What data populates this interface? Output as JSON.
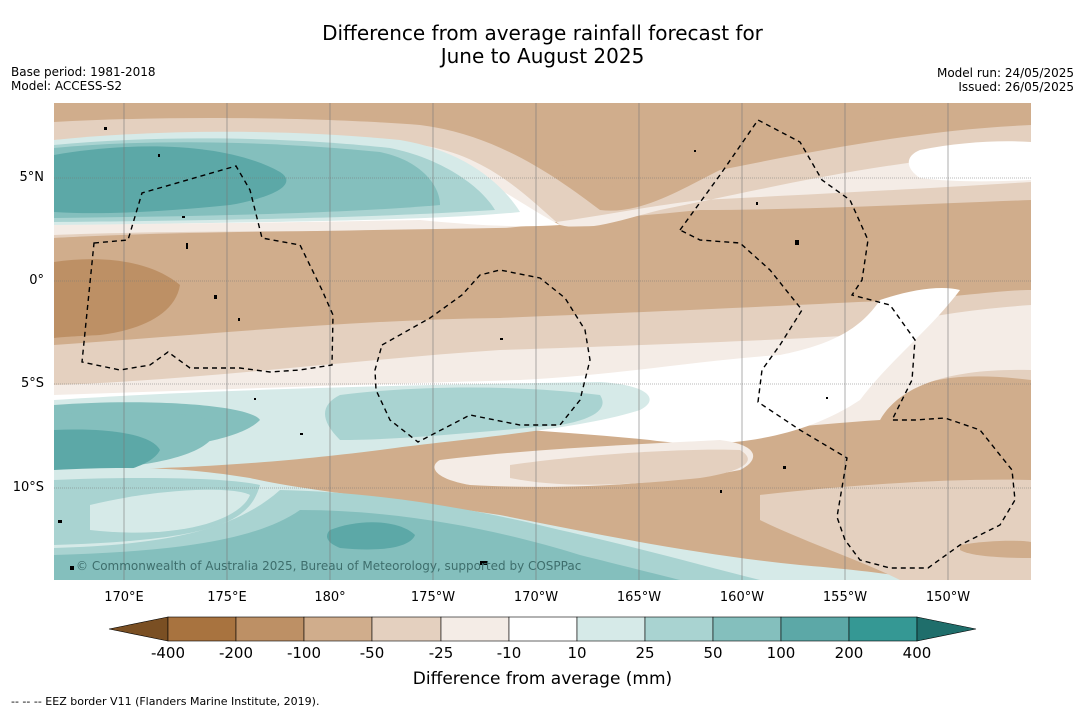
{
  "title_line1": "Difference from average rainfall forecast for",
  "title_line2": "June to August 2025",
  "meta": {
    "base_period": "Base period: 1981-2018",
    "model": "Model: ACCESS-S2",
    "model_run": "Model run: 24/05/2025",
    "issued": "Issued: 26/05/2025"
  },
  "map": {
    "lat_labels": [
      "5°N",
      "0°",
      "5°S",
      "10°S"
    ],
    "lon_labels": [
      "170°E",
      "175°E",
      "180°",
      "175°W",
      "170°W",
      "165°W",
      "160°W",
      "155°W",
      "150°W"
    ],
    "copyright": "© Commonwealth of Australia 2025, Bureau of Meteorology, supported by COSPPac",
    "boundary_style": "dashed black EEZ lines",
    "gridlines": true
  },
  "legend": {
    "ticks": [
      "-400",
      "-200",
      "-100",
      "-50",
      "-25",
      "-10",
      "10",
      "25",
      "50",
      "100",
      "200",
      "400"
    ],
    "colors": [
      "#7a4f23",
      "#a8733f",
      "#bd9065",
      "#d0ad8c",
      "#e4d0bf",
      "#f4ece6",
      "#ffffff",
      "#d6eae8",
      "#a9d3d1",
      "#84bfbd",
      "#5ca8a7",
      "#359894",
      "#1f6e6b"
    ],
    "label": "Difference from average (mm)"
  },
  "footnote": "--  --  -- EEZ border V11 (Flanders Marine Institute, 2019)."
}
